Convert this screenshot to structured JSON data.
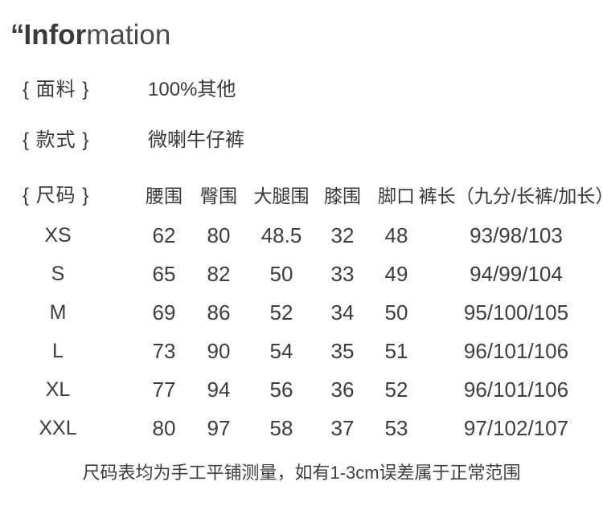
{
  "title": {
    "quote": "“",
    "bold": "Infor",
    "light": "mation"
  },
  "info": {
    "fabric": {
      "label": "{ 面料 }",
      "value": "100%其他"
    },
    "style": {
      "label": "{ 款式 }",
      "value": "微喇牛仔裤"
    }
  },
  "size_table": {
    "section_label": "{ 尺码 }",
    "headers": {
      "waist": "腰围",
      "hip": "臀围",
      "thigh": "大腿围",
      "knee": "膝围",
      "leg_opening": "脚口",
      "length": "裤长（九分/长裤/加长）"
    },
    "rows": [
      {
        "size": "XS",
        "waist": "62",
        "hip": "80",
        "thigh": "48.5",
        "knee": "32",
        "leg_opening": "48",
        "length": "93/98/103"
      },
      {
        "size": "S",
        "waist": "65",
        "hip": "82",
        "thigh": "50",
        "knee": "33",
        "leg_opening": "49",
        "length": "94/99/104"
      },
      {
        "size": "M",
        "waist": "69",
        "hip": "86",
        "thigh": "52",
        "knee": "34",
        "leg_opening": "50",
        "length": "95/100/105"
      },
      {
        "size": "L",
        "waist": "73",
        "hip": "90",
        "thigh": "54",
        "knee": "35",
        "leg_opening": "51",
        "length": "96/101/106"
      },
      {
        "size": "XL",
        "waist": "77",
        "hip": "94",
        "thigh": "56",
        "knee": "36",
        "leg_opening": "52",
        "length": "96/101/106"
      },
      {
        "size": "XXL",
        "waist": "80",
        "hip": "97",
        "thigh": "58",
        "knee": "37",
        "leg_opening": "53",
        "length": "97/102/107"
      }
    ]
  },
  "footer_note": "尺码表均为手工平铺测量，如有1-3cm误差属于正常范围",
  "colors": {
    "text": "#3a3a3a",
    "background": "#ffffff"
  }
}
